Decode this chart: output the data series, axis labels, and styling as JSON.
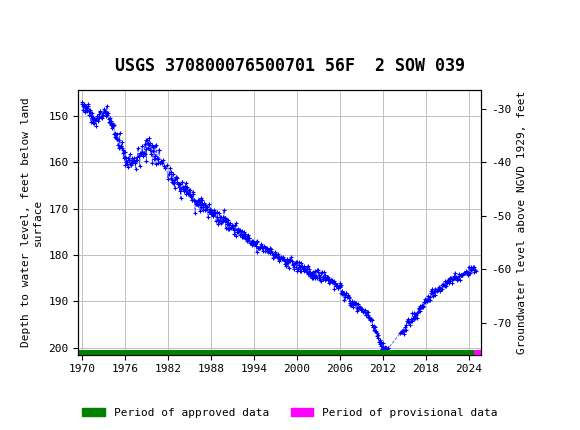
{
  "title": "USGS 370800076500701 56F  2 SOW 039",
  "usgs_header_color": "#006644",
  "ylabel_left": "Depth to water level, feet below land\nsurface",
  "ylabel_right": "Groundwater level above NGVD 1929, feet",
  "ylim_left": [
    201.5,
    144.5
  ],
  "ylim_right": [
    -76.0,
    -26.5
  ],
  "xlim": [
    1969.5,
    2025.8
  ],
  "xticks": [
    1970,
    1976,
    1982,
    1988,
    1994,
    2000,
    2006,
    2012,
    2018,
    2024
  ],
  "yticks_left": [
    150,
    160,
    170,
    180,
    190,
    200
  ],
  "yticks_right": [
    -30,
    -40,
    -50,
    -60,
    -70
  ],
  "data_color": "#0000FF",
  "approved_color": "#008000",
  "provisional_color": "#FF00FF",
  "background_color": "#FFFFFF",
  "grid_color": "#C0C0C0",
  "title_fontsize": 12,
  "label_fontsize": 8,
  "tick_fontsize": 8,
  "legend_fontsize": 8,
  "approved_xstart": 1969.5,
  "approved_xend": 2024.8,
  "provisional_xstart": 2024.8,
  "provisional_xend": 2025.8,
  "font_family": "monospace"
}
